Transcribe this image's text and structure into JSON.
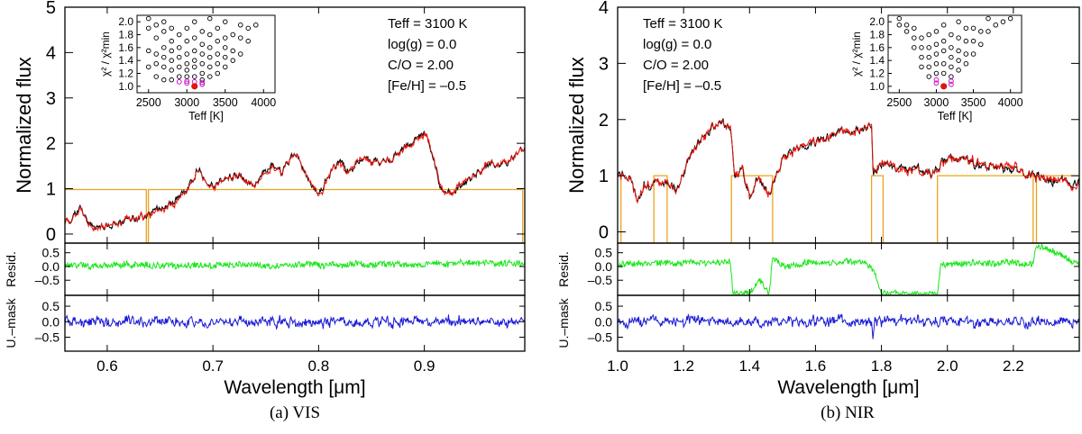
{
  "chart_data": [
    {
      "type": "line",
      "caption": "(a) VIS",
      "xlabel": "Wavelength [μm]",
      "xlim": [
        0.56,
        0.995
      ],
      "xticks": [
        "0.6",
        "0.7",
        "0.8",
        "0.9"
      ],
      "xtick_values": [
        0.6,
        0.7,
        0.8,
        0.9
      ],
      "main": {
        "ylabel": "Normalized flux",
        "ylim": [
          -0.2,
          5.0
        ],
        "yticks": [
          "0",
          "1",
          "2",
          "3",
          "4",
          "5"
        ],
        "params": [
          "Teff = 3100 K",
          "log(g) = 0.0",
          "C/O = 2.00",
          "[Fe/H] = –0.5"
        ],
        "colors": {
          "observed": "#000000",
          "model": "#e8140c",
          "mask": "#e8a51e"
        },
        "knots_x": [
          0.56,
          0.565,
          0.57,
          0.575,
          0.58,
          0.585,
          0.59,
          0.6,
          0.61,
          0.62,
          0.63,
          0.64,
          0.65,
          0.66,
          0.67,
          0.68,
          0.685,
          0.69,
          0.7,
          0.71,
          0.72,
          0.73,
          0.74,
          0.75,
          0.76,
          0.765,
          0.77,
          0.78,
          0.79,
          0.8,
          0.81,
          0.82,
          0.83,
          0.84,
          0.85,
          0.86,
          0.87,
          0.88,
          0.89,
          0.9,
          0.905,
          0.91,
          0.915,
          0.92,
          0.93,
          0.94,
          0.95,
          0.96,
          0.97,
          0.98,
          0.99,
          0.995
        ],
        "knots_y": [
          0.25,
          0.3,
          0.45,
          0.6,
          0.35,
          0.2,
          0.1,
          0.2,
          0.25,
          0.3,
          0.35,
          0.45,
          0.55,
          0.65,
          0.9,
          1.1,
          1.45,
          1.3,
          1.05,
          1.2,
          1.3,
          1.2,
          1.1,
          1.4,
          1.55,
          1.3,
          1.6,
          1.8,
          1.2,
          0.9,
          1.3,
          1.6,
          1.4,
          1.7,
          1.65,
          1.55,
          1.7,
          1.9,
          2.0,
          2.25,
          2.0,
          1.5,
          1.05,
          0.85,
          1.0,
          1.15,
          1.35,
          1.5,
          1.55,
          1.6,
          1.8,
          1.85
        ],
        "mask_x": [
          0.56,
          0.637,
          0.637,
          0.639,
          0.639,
          0.993,
          0.993,
          0.995
        ],
        "mask_y": [
          0.98,
          0.98,
          -0.2,
          -0.2,
          0.98,
          0.98,
          -0.2,
          -0.2
        ]
      },
      "resid": {
        "ylabel": "Resid.",
        "ylim": [
          -1.05,
          0.85
        ],
        "yticks": [
          "0.5",
          "0.0",
          "–0.5"
        ],
        "ytick_values": [
          0.5,
          0.0,
          -0.5
        ],
        "color": "#19e619",
        "knots_x": [
          0.56,
          0.995
        ],
        "knots_y": [
          0.05,
          0.1
        ]
      },
      "umask": {
        "ylabel": "U.–mask",
        "ylim": [
          -0.95,
          0.85
        ],
        "yticks": [
          "0.5",
          "0.0",
          "–0.5"
        ],
        "ytick_values": [
          0.5,
          0.0,
          -0.5
        ],
        "color": "#1a1ad6",
        "knots_x": [
          0.56,
          0.995
        ],
        "knots_y": [
          0.0,
          0.0
        ]
      },
      "inset": {
        "xlabel": "Teff [K]",
        "ylabel": "χ² / χ²min",
        "xlim": [
          2350,
          4150
        ],
        "ylim": [
          0.9,
          2.1
        ],
        "xticks": [
          "2500",
          "3000",
          "3500",
          "4000"
        ],
        "xtick_values": [
          2500,
          3000,
          3500,
          4000
        ],
        "yticks": [
          "1.0",
          "1.2",
          "1.4",
          "1.6",
          "1.8",
          "2.0"
        ],
        "ytick_values": [
          1.0,
          1.2,
          1.4,
          1.6,
          1.8,
          2.0
        ],
        "best": {
          "x": 3100,
          "y": 1.0
        },
        "magenta": [
          [
            2900,
            1.07
          ],
          [
            3000,
            1.05
          ],
          [
            3000,
            1.08
          ],
          [
            3100,
            1.07
          ],
          [
            3200,
            1.03
          ],
          [
            3200,
            1.06
          ]
        ],
        "points": [
          [
            2500,
            1.3
          ],
          [
            2500,
            1.55
          ],
          [
            2500,
            1.9
          ],
          [
            2500,
            2.05
          ],
          [
            2600,
            1.15
          ],
          [
            2600,
            1.35
          ],
          [
            2600,
            1.5
          ],
          [
            2600,
            1.75
          ],
          [
            2600,
            1.95
          ],
          [
            2700,
            1.1
          ],
          [
            2700,
            1.3
          ],
          [
            2700,
            1.45
          ],
          [
            2700,
            1.6
          ],
          [
            2700,
            1.85
          ],
          [
            2700,
            2.0
          ],
          [
            2800,
            1.1
          ],
          [
            2800,
            1.25
          ],
          [
            2800,
            1.4
          ],
          [
            2800,
            1.55
          ],
          [
            2800,
            1.7
          ],
          [
            2800,
            1.9
          ],
          [
            2900,
            1.15
          ],
          [
            2900,
            1.3
          ],
          [
            2900,
            1.45
          ],
          [
            2900,
            1.6
          ],
          [
            2900,
            1.8
          ],
          [
            3000,
            1.15
          ],
          [
            3000,
            1.25
          ],
          [
            3000,
            1.35
          ],
          [
            3000,
            1.5
          ],
          [
            3000,
            1.7
          ],
          [
            3000,
            1.9
          ],
          [
            3100,
            1.15
          ],
          [
            3100,
            1.3
          ],
          [
            3100,
            1.4
          ],
          [
            3100,
            1.55
          ],
          [
            3100,
            1.75
          ],
          [
            3100,
            2.0
          ],
          [
            3200,
            1.1
          ],
          [
            3200,
            1.2
          ],
          [
            3200,
            1.35
          ],
          [
            3200,
            1.5
          ],
          [
            3200,
            1.65
          ],
          [
            3200,
            1.85
          ],
          [
            3300,
            1.15
          ],
          [
            3300,
            1.3
          ],
          [
            3300,
            1.45
          ],
          [
            3300,
            1.6
          ],
          [
            3300,
            1.8
          ],
          [
            3300,
            2.05
          ],
          [
            3400,
            1.2
          ],
          [
            3400,
            1.35
          ],
          [
            3400,
            1.5
          ],
          [
            3400,
            1.7
          ],
          [
            3400,
            1.9
          ],
          [
            3500,
            1.3
          ],
          [
            3500,
            1.45
          ],
          [
            3500,
            1.6
          ],
          [
            3500,
            1.75
          ],
          [
            3500,
            2.0
          ],
          [
            3600,
            1.4
          ],
          [
            3600,
            1.55
          ],
          [
            3600,
            1.8
          ],
          [
            3700,
            1.5
          ],
          [
            3700,
            1.75
          ],
          [
            3700,
            1.95
          ],
          [
            3800,
            1.7
          ],
          [
            3800,
            1.9
          ],
          [
            3900,
            1.95
          ]
        ]
      }
    },
    {
      "type": "line",
      "caption": "(b) NIR",
      "xlabel": "Wavelength [μm]",
      "xlim": [
        1.0,
        2.4
      ],
      "xticks": [
        "1.0",
        "1.2",
        "1.4",
        "1.6",
        "1.8",
        "2.0",
        "2.2"
      ],
      "xtick_values": [
        1.0,
        1.2,
        1.4,
        1.6,
        1.8,
        2.0,
        2.2
      ],
      "main": {
        "ylabel": "Normalized flux",
        "ylim": [
          -0.2,
          4.0
        ],
        "yticks": [
          "0",
          "1",
          "2",
          "3",
          "4"
        ],
        "params": [
          "Teff = 3100 K",
          "log(g) = 0.0",
          "C/O = 2.00",
          "[Fe/H] = –0.5"
        ],
        "colors": {
          "observed": "#000000",
          "model": "#e8140c",
          "mask": "#e8a51e"
        },
        "knots_x": [
          1.0,
          1.02,
          1.04,
          1.06,
          1.08,
          1.1,
          1.12,
          1.15,
          1.18,
          1.2,
          1.22,
          1.25,
          1.28,
          1.3,
          1.32,
          1.345,
          1.355,
          1.38,
          1.4,
          1.43,
          1.46,
          1.48,
          1.5,
          1.55,
          1.6,
          1.65,
          1.7,
          1.75,
          1.77,
          1.775,
          1.8,
          1.85,
          1.9,
          1.95,
          2.0,
          2.05,
          2.1,
          2.15,
          2.2,
          2.25,
          2.3,
          2.35,
          2.4
        ],
        "knots_y": [
          1.0,
          1.05,
          0.95,
          0.5,
          0.85,
          0.7,
          0.9,
          0.85,
          0.75,
          1.05,
          1.3,
          1.6,
          1.8,
          1.9,
          1.95,
          1.8,
          1.0,
          1.1,
          0.6,
          1.0,
          0.65,
          0.95,
          1.3,
          1.5,
          1.6,
          1.7,
          1.8,
          1.85,
          1.9,
          1.0,
          1.2,
          1.1,
          1.1,
          1.05,
          1.3,
          1.3,
          1.2,
          1.15,
          1.1,
          1.05,
          0.95,
          0.9,
          0.85
        ],
        "mask_x": [
          1.0,
          1.01,
          1.01,
          1.11,
          1.11,
          1.15,
          1.15,
          1.345,
          1.345,
          1.47,
          1.47,
          1.77,
          1.77,
          1.805,
          1.805,
          1.97,
          1.97,
          2.26,
          2.26,
          2.27,
          2.27,
          2.4
        ],
        "mask_y": [
          1.0,
          1.0,
          -0.2,
          -0.2,
          1.0,
          1.0,
          -0.2,
          -0.2,
          1.0,
          1.0,
          -0.2,
          -0.2,
          1.0,
          1.0,
          -0.2,
          -0.2,
          1.0,
          1.0,
          -0.2,
          -0.2,
          1.0,
          1.0
        ]
      },
      "resid": {
        "ylabel": "Resid.",
        "ylim": [
          -1.05,
          0.85
        ],
        "yticks": [
          "0.5",
          "0.0",
          "–0.5"
        ],
        "ytick_values": [
          0.5,
          0.0,
          -0.5
        ],
        "color": "#19e619",
        "knots_x": [
          1.0,
          1.34,
          1.345,
          1.35,
          1.4,
          1.43,
          1.46,
          1.47,
          1.5,
          1.75,
          1.78,
          1.8,
          1.97,
          1.98,
          2.26,
          2.27,
          2.4
        ],
        "knots_y": [
          0.1,
          0.15,
          -0.3,
          -1.0,
          -1.0,
          -0.5,
          -1.0,
          0.3,
          0.05,
          0.2,
          -0.3,
          -1.0,
          -1.0,
          0.1,
          0.1,
          0.8,
          0.1
        ]
      },
      "umask": {
        "ylabel": "U.–mask",
        "ylim": [
          -0.95,
          0.85
        ],
        "yticks": [
          "0.5",
          "0.0",
          "–0.5"
        ],
        "ytick_values": [
          0.5,
          0.0,
          -0.5
        ],
        "color": "#1a1ad6",
        "knots_x": [
          1.0,
          1.77,
          1.775,
          1.78,
          2.4
        ],
        "knots_y": [
          0.0,
          0.0,
          -0.55,
          0.0,
          0.0
        ]
      },
      "inset": {
        "xlabel": "Teff [K]",
        "ylabel": "χ² / χ²min",
        "xlim": [
          2350,
          4150
        ],
        "ylim": [
          0.9,
          2.1
        ],
        "xticks": [
          "2500",
          "3000",
          "3500",
          "4000"
        ],
        "xtick_values": [
          2500,
          3000,
          3500,
          4000
        ],
        "yticks": [
          "1.0",
          "1.2",
          "1.4",
          "1.6",
          "1.8",
          "2.0"
        ],
        "ytick_values": [
          1.0,
          1.2,
          1.4,
          1.6,
          1.8,
          2.0
        ],
        "best": {
          "x": 3100,
          "y": 1.0
        },
        "magenta": [
          [
            3000,
            1.05
          ],
          [
            3000,
            1.1
          ],
          [
            3200,
            1.03
          ],
          [
            3200,
            1.08
          ]
        ],
        "points": [
          [
            2500,
            1.95
          ],
          [
            2500,
            2.05
          ],
          [
            2600,
            1.85
          ],
          [
            2600,
            1.95
          ],
          [
            2700,
            1.6
          ],
          [
            2700,
            1.75
          ],
          [
            2700,
            1.9
          ],
          [
            2800,
            1.3
          ],
          [
            2800,
            1.45
          ],
          [
            2800,
            1.6
          ],
          [
            2800,
            1.75
          ],
          [
            2900,
            1.15
          ],
          [
            2900,
            1.3
          ],
          [
            2900,
            1.45
          ],
          [
            2900,
            1.6
          ],
          [
            2900,
            1.8
          ],
          [
            3000,
            1.2
          ],
          [
            3000,
            1.35
          ],
          [
            3000,
            1.5
          ],
          [
            3000,
            1.65
          ],
          [
            3000,
            1.85
          ],
          [
            3100,
            1.2
          ],
          [
            3100,
            1.35
          ],
          [
            3100,
            1.55
          ],
          [
            3100,
            1.7
          ],
          [
            3100,
            1.95
          ],
          [
            3200,
            1.15
          ],
          [
            3200,
            1.3
          ],
          [
            3200,
            1.45
          ],
          [
            3200,
            1.6
          ],
          [
            3200,
            1.8
          ],
          [
            3300,
            1.25
          ],
          [
            3300,
            1.4
          ],
          [
            3300,
            1.55
          ],
          [
            3300,
            1.75
          ],
          [
            3300,
            2.0
          ],
          [
            3400,
            1.35
          ],
          [
            3400,
            1.5
          ],
          [
            3400,
            1.7
          ],
          [
            3400,
            1.9
          ],
          [
            3500,
            1.5
          ],
          [
            3500,
            1.7
          ],
          [
            3500,
            1.9
          ],
          [
            3600,
            1.65
          ],
          [
            3600,
            1.85
          ],
          [
            3700,
            1.85
          ],
          [
            3700,
            2.05
          ],
          [
            3800,
            1.95
          ],
          [
            3900,
            2.0
          ],
          [
            4000,
            2.05
          ]
        ]
      }
    }
  ]
}
